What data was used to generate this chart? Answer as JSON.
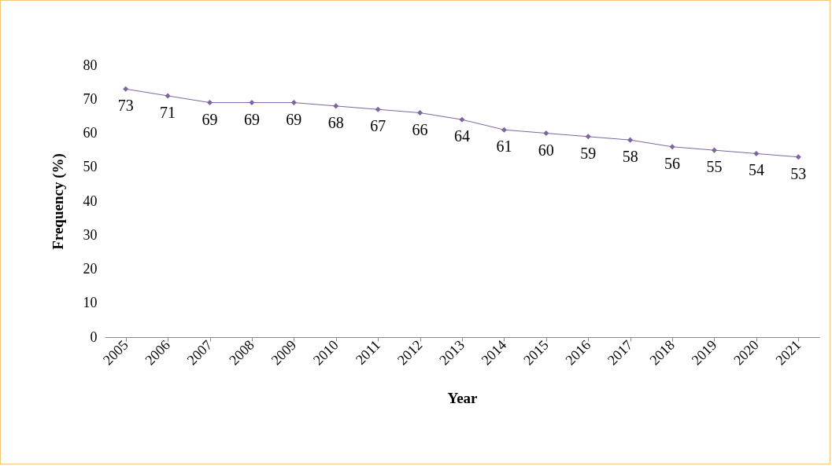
{
  "chart_data": {
    "type": "line",
    "categories": [
      "2005",
      "2006",
      "2007",
      "2008",
      "2009",
      "2010",
      "2011",
      "2012",
      "2013",
      "2014",
      "2015",
      "2016",
      "2017",
      "2018",
      "2019",
      "2020",
      "2021"
    ],
    "values": [
      73,
      71,
      69,
      69,
      69,
      68,
      67,
      66,
      64,
      61,
      60,
      59,
      58,
      56,
      55,
      54,
      53
    ],
    "color": "#7f65a0",
    "xlabel": "Year",
    "ylabel": "Frequency (%)",
    "ylim": [
      0,
      80
    ],
    "yticks": [
      0,
      10,
      20,
      30,
      40,
      50,
      60,
      70,
      80
    ],
    "marker": "diamond",
    "line_style": "solid",
    "data_labels": true
  }
}
